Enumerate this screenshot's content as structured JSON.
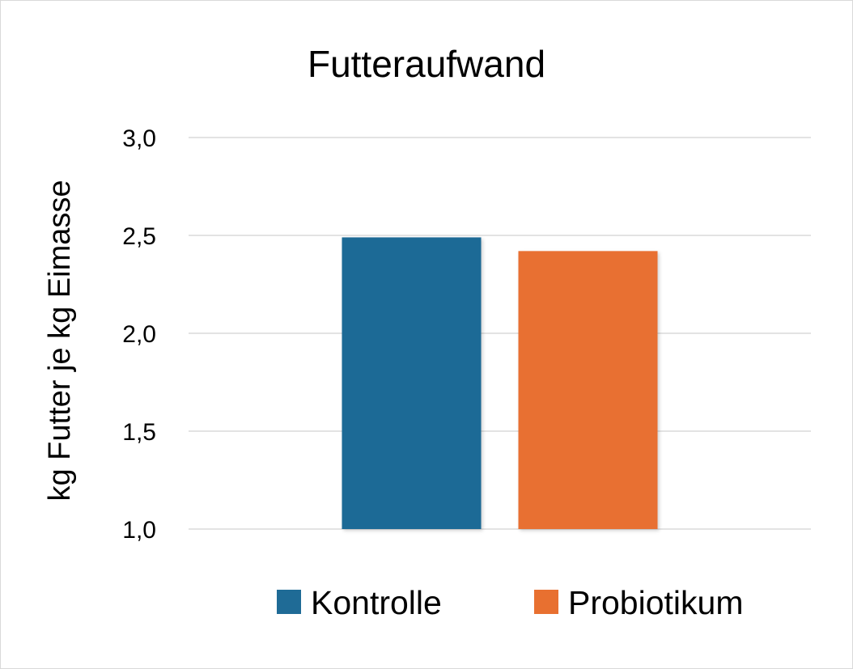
{
  "chart_data": {
    "type": "bar",
    "title": "Futteraufwand",
    "xlabel": "",
    "ylabel": "kg Futter je kg Eimasse",
    "ylim": [
      1.0,
      3.0
    ],
    "yticks": [
      "1,0",
      "1,5",
      "2,0",
      "2,5",
      "3,0"
    ],
    "grid": true,
    "legend_position": "bottom",
    "categories": [
      ""
    ],
    "series": [
      {
        "name": "Kontrolle",
        "values": [
          2.49
        ],
        "color": "#1f6b96"
      },
      {
        "name": "Probiotikum",
        "values": [
          2.42
        ],
        "color": "#e87030"
      }
    ]
  }
}
